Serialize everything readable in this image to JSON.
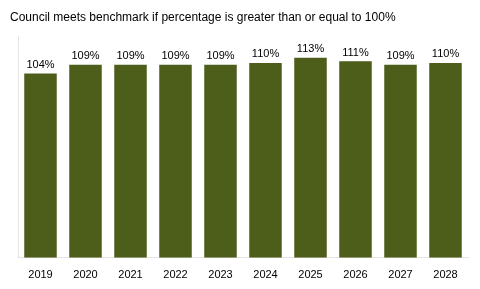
{
  "chart_data": {
    "type": "bar",
    "title": "Council meets benchmark if percentage is greater than or equal to 100%",
    "categories": [
      "2019",
      "2020",
      "2021",
      "2022",
      "2023",
      "2024",
      "2025",
      "2026",
      "2027",
      "2028"
    ],
    "values": [
      104,
      109,
      109,
      109,
      109,
      110,
      113,
      111,
      109,
      110
    ],
    "value_labels": [
      "104%",
      "109%",
      "109%",
      "109%",
      "109%",
      "110%",
      "113%",
      "111%",
      "109%",
      "110%"
    ],
    "data_labels": true,
    "color": "#4d5e1a",
    "ylim": [
      0,
      125
    ],
    "grid": false,
    "tick_labels": "x"
  }
}
